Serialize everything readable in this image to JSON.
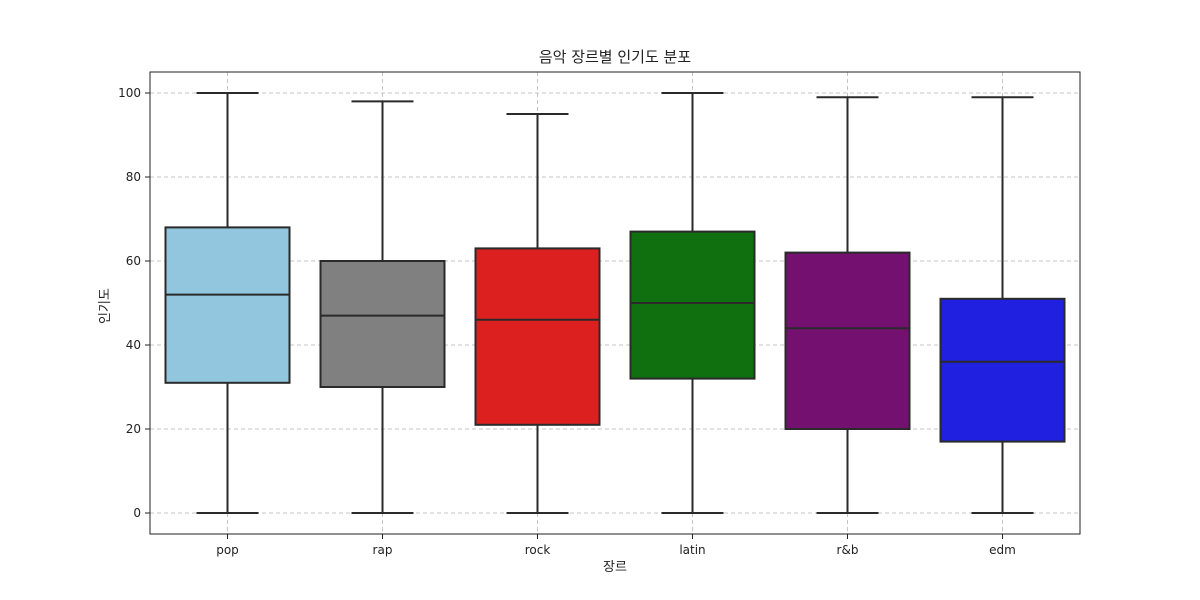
{
  "chart_data": {
    "type": "box",
    "title": "음악 장르별 인기도 분포",
    "xlabel": "장르",
    "ylabel": "인기도",
    "ylim": [
      -5,
      105
    ],
    "yticks": [
      0,
      20,
      40,
      60,
      80,
      100
    ],
    "grid": true,
    "categories": [
      "pop",
      "rap",
      "rock",
      "latin",
      "r&b",
      "edm"
    ],
    "boxes": [
      {
        "category": "pop",
        "min": 0,
        "q1": 31,
        "median": 52,
        "q3": 68,
        "max": 100,
        "color": "#92c6de"
      },
      {
        "category": "rap",
        "min": 0,
        "q1": 30,
        "median": 47,
        "q3": 60,
        "max": 98,
        "color": "#808080"
      },
      {
        "category": "rock",
        "min": 0,
        "q1": 21,
        "median": 46,
        "q3": 63,
        "max": 95,
        "color": "#dc2020"
      },
      {
        "category": "latin",
        "min": 0,
        "q1": 32,
        "median": 50,
        "q3": 67,
        "max": 100,
        "color": "#107010"
      },
      {
        "category": "r&b",
        "min": 0,
        "q1": 20,
        "median": 44,
        "q3": 62,
        "max": 99,
        "color": "#741070"
      },
      {
        "category": "edm",
        "min": 0,
        "q1": 17,
        "median": 36,
        "q3": 51,
        "max": 99,
        "color": "#2020e0"
      }
    ]
  }
}
